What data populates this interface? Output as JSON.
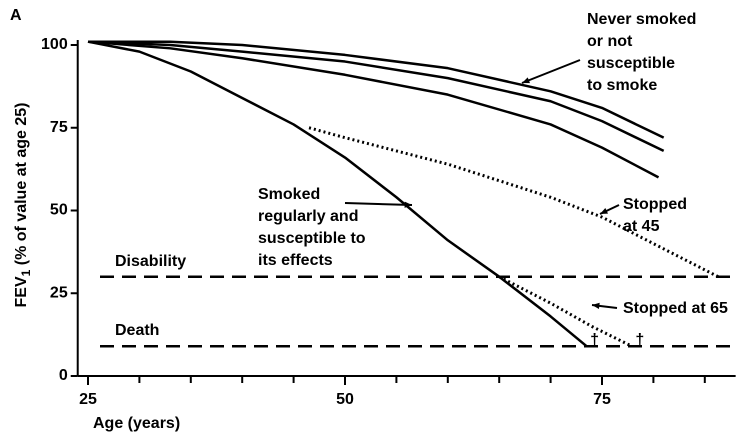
{
  "chart_data": {
    "type": "line",
    "panel": "A",
    "xlabel": "Age (years)",
    "ylabel": {
      "main": "FEV",
      "sub": "1",
      "rest": " (% of value at age 25)"
    },
    "xlim": [
      24,
      88
    ],
    "ylim": [
      0,
      100
    ],
    "xticks": [
      25,
      50,
      75
    ],
    "x_minor_ticks": [
      30,
      35,
      40,
      45,
      55,
      60,
      65,
      70,
      80,
      85
    ],
    "yticks": [
      0,
      25,
      50,
      75,
      100
    ],
    "color": "#000000",
    "death_marker": "†",
    "series": [
      {
        "x": [
          25,
          33,
          40,
          50,
          60,
          70,
          75,
          81
        ],
        "values": [
          101,
          101,
          100,
          97,
          93,
          86,
          81,
          72
        ],
        "dash": "solid",
        "end_mark": false
      },
      {
        "x": [
          25,
          33,
          40,
          50,
          60,
          70,
          75,
          81
        ],
        "values": [
          101,
          100,
          98,
          95,
          90,
          83,
          77,
          68
        ],
        "dash": "solid",
        "end_mark": false
      },
      {
        "x": [
          25,
          33,
          40,
          50,
          60,
          70,
          75,
          80.5
        ],
        "values": [
          101,
          99,
          96,
          91,
          85,
          76,
          69,
          60
        ],
        "dash": "solid",
        "end_mark": false
      },
      {
        "x": [
          25,
          30,
          35,
          40,
          45,
          50,
          55,
          60,
          65,
          70,
          73.5
        ],
        "values": [
          101,
          98,
          92,
          84,
          76,
          66,
          54,
          41,
          30,
          18,
          9
        ],
        "dash": "solid",
        "end_mark": true
      },
      {
        "x": [
          46.5,
          50,
          55,
          60,
          65,
          70,
          75,
          80,
          86.3
        ],
        "values": [
          75,
          72,
          68,
          64,
          59,
          54,
          48,
          40,
          30
        ],
        "dash": "dotted",
        "end_mark": false
      },
      {
        "x": [
          65,
          70,
          74,
          77.9
        ],
        "values": [
          30,
          22,
          15,
          9
        ],
        "dash": "dotted",
        "end_mark": true
      }
    ],
    "hlines": [
      {
        "label": "Disability",
        "value": 30
      },
      {
        "label": "Death",
        "value": 9
      }
    ],
    "annotations": [
      {
        "lines": [
          "Never smoked",
          "or not",
          "susceptible",
          "to smoke"
        ]
      },
      {
        "lines": [
          "Smoked",
          "regularly and",
          "susceptible to",
          "its effects"
        ]
      },
      {
        "lines": [
          "Stopped",
          "at 45"
        ]
      },
      {
        "lines": [
          "Stopped at 65"
        ]
      }
    ]
  }
}
